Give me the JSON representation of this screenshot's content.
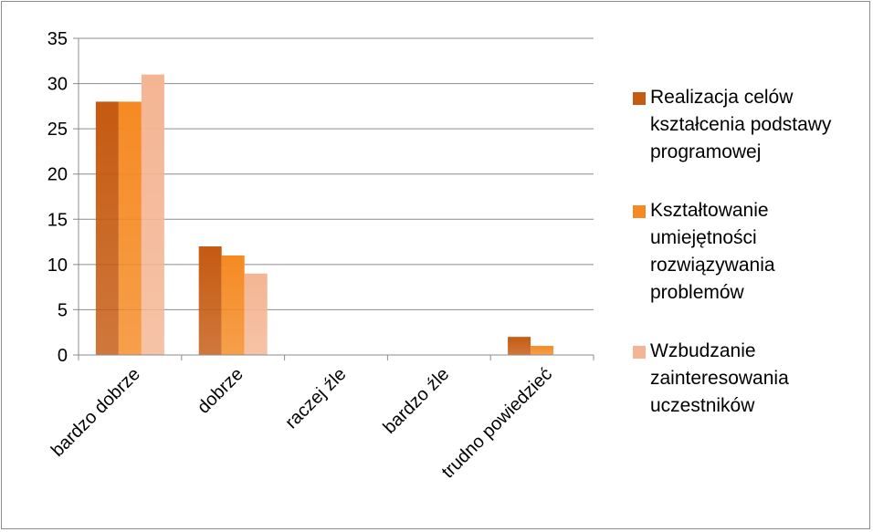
{
  "chart_data": {
    "type": "bar",
    "categories": [
      "bardzo dobrze",
      "dobrze",
      "raczej źle",
      "bardzo źle",
      "trudno powiedzieć"
    ],
    "series": [
      {
        "name": "Realizacja celów kształcenia podstawy programowej",
        "values": [
          28,
          12,
          0,
          0,
          2
        ],
        "color": "#c55a11"
      },
      {
        "name": "Kształtowanie umiejętności rozwiązywania problemów",
        "values": [
          28,
          11,
          0,
          0,
          1
        ],
        "color": "#f58a23"
      },
      {
        "name": "Wzbudzanie zainteresowania uczestników",
        "values": [
          31,
          9,
          0,
          0,
          0
        ],
        "color": "#f4b593"
      }
    ],
    "title": "",
    "xlabel": "",
    "ylabel": "",
    "ylim": [
      0,
      35
    ],
    "yticks": [
      "0",
      "5",
      "10",
      "15",
      "20",
      "25",
      "30",
      "35"
    ],
    "grid": true,
    "legend_position": "right"
  }
}
